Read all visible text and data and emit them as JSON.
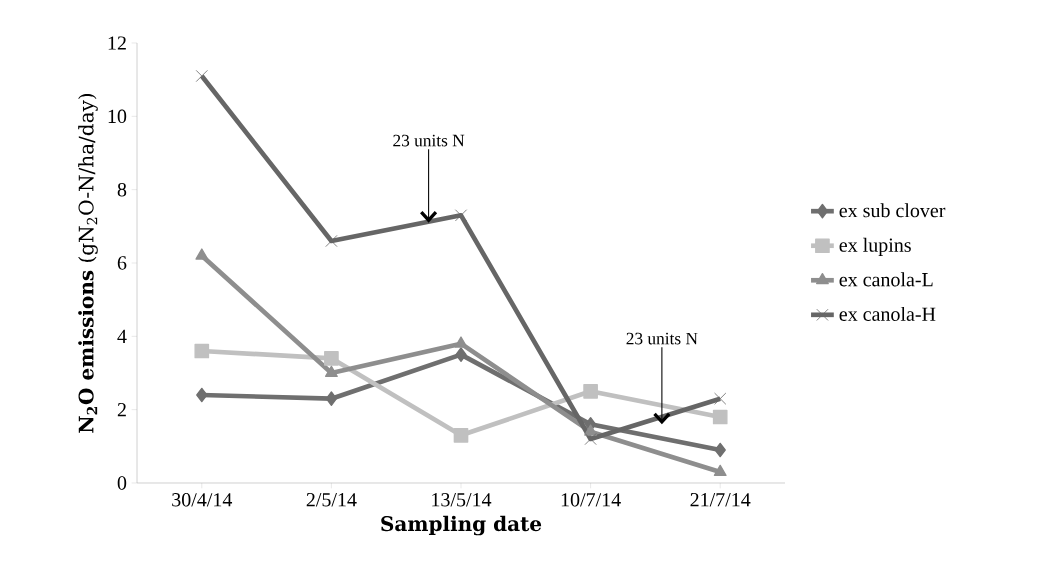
{
  "chart_data": {
    "type": "line",
    "xlabel": "**Sampling date**",
    "ylabel": "**N$_{2}$O emissions** (gN$_{2}$O-N/ha/day)",
    "categories": [
      "30/4/14",
      "2/5/14",
      "13/5/14",
      "10/7/14",
      "21/7/14"
    ],
    "series": [
      {
        "name": "ex sub clover",
        "color": "#6f6f6f",
        "marker": "diamond",
        "values": [
          2.4,
          2.3,
          3.5,
          1.6,
          0.9
        ]
      },
      {
        "name": "ex lupins",
        "color": "#c0c0c0",
        "marker": "square",
        "values": [
          3.6,
          3.4,
          1.3,
          2.5,
          1.8
        ]
      },
      {
        "name": "ex canola-L",
        "color": "#8e8e8e",
        "marker": "triangle",
        "values": [
          6.2,
          3.0,
          3.8,
          1.4,
          0.3
        ]
      },
      {
        "name": "ex canola-H",
        "color": "#666666",
        "marker": "cross",
        "values": [
          11.1,
          6.6,
          7.3,
          1.2,
          2.3
        ]
      }
    ],
    "annotations": [
      {
        "text": "23 units N",
        "y": 7.1
      },
      {
        "text": "23 units N",
        "y": 1.6
      }
    ],
    "ylim": [
      0,
      12
    ],
    "yticks": [
      0,
      2,
      4,
      6,
      8,
      10,
      12
    ],
    "grid": false,
    "legend": "right",
    "line_style": "solid"
  }
}
